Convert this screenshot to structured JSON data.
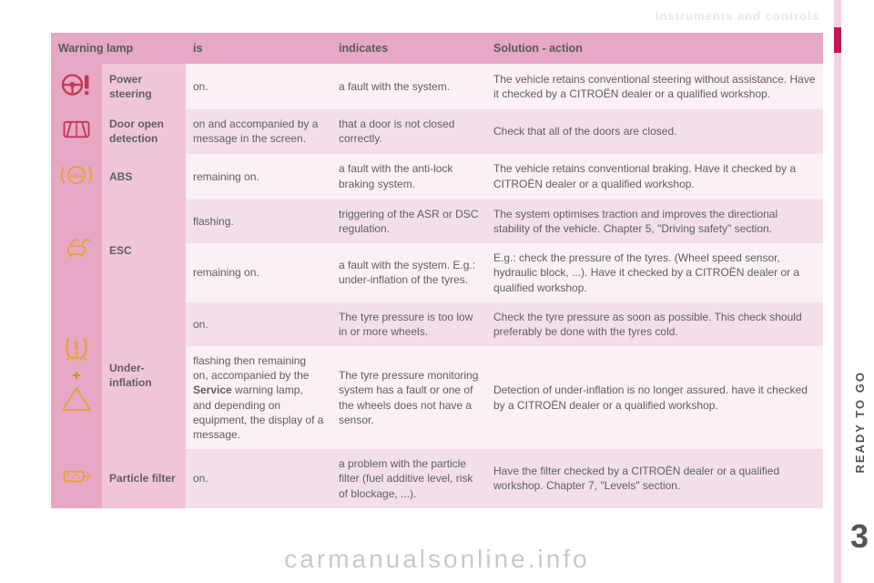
{
  "header_faint": "Instruments and controls",
  "side_label": "READY TO GO",
  "page_number": "3",
  "watermark": "carmanualsonline.info",
  "colors": {
    "header_bg": "#e6a8c4",
    "row_light": "#faf0f5",
    "row_dark": "#f3dfe9",
    "name_cell": "#f0c5da",
    "icon_red": "#c13a53",
    "icon_orange": "#e8a13a",
    "right_bar": "#f4d3e1",
    "accent": "#c2185b"
  },
  "table": {
    "headers": [
      "Warning lamp",
      "is",
      "indicates",
      "Solution - action"
    ],
    "rows": [
      {
        "icon": "steering",
        "name": "Power steering",
        "is": "on.",
        "indicates": "a fault with the system.",
        "solution": "The vehicle retains conventional steering without assistance. Have it checked by a CITROËN dealer or a qualified workshop.",
        "shade": "light"
      },
      {
        "icon": "door",
        "name": "Door open detection",
        "is": "on and accompanied by a message in the screen.",
        "indicates": "that a door is not closed correctly.",
        "solution": "Check that all of the doors are closed.",
        "shade": "dark"
      },
      {
        "icon": "abs",
        "name": "ABS",
        "is": "remaining on.",
        "indicates": "a fault with the anti-lock braking system.",
        "solution": "The vehicle retains conventional braking.\nHave it checked by a CITROËN dealer or a qualified workshop.",
        "shade": "light"
      },
      {
        "icon": "esc",
        "name": "ESC",
        "rowspan": 2,
        "sub": [
          {
            "is": "flashing.",
            "indicates": "triggering of the ASR or DSC regulation.",
            "solution": "The system optimises traction and improves the directional stability of the vehicle.\nChapter 5, \"Driving safety\" section.",
            "shade": "dark"
          },
          {
            "is": "remaining on.",
            "indicates": "a fault with the system. E.g.: under-inflation of the tyres.",
            "solution": "E.g.: check the pressure of the tyres. (Wheel speed sensor, hydraulic block, ...). Have it checked by a CITROËN dealer or a qualified workshop.",
            "shade": "light"
          }
        ]
      },
      {
        "icon": "tyre",
        "name": "Under-inflation",
        "rowspan": 2,
        "sub": [
          {
            "is": "on.",
            "indicates": "The tyre pressure is too low in or more wheels.",
            "solution": "Check the tyre pressure as soon as possible. This check should preferably be done with the tyres cold.",
            "shade": "dark"
          },
          {
            "is_html": "flashing then remaining on, accompanied by the <b>Service</b> warning lamp, and depending on equipment, the display of a message.",
            "indicates": "The tyre pressure monitoring system has a fault or one of the wheels does not have a sensor.",
            "solution": "Detection of under-inflation is no longer assured. have it checked by a CITROËN dealer or a qualified workshop.",
            "shade": "light"
          }
        ]
      },
      {
        "icon": "particle",
        "name": "Particle filter",
        "is": "on.",
        "indicates": "a problem with the particle filter (fuel additive level, risk of blockage, ...).",
        "solution": "Have the filter checked by a CITROËN dealer or a qualified workshop.\nChapter 7, \"Levels\" section.",
        "shade": "dark"
      }
    ]
  },
  "icons": {
    "steering": {
      "color": "#c13a53",
      "type": "steering"
    },
    "door": {
      "color": "#c13a53",
      "type": "door"
    },
    "abs": {
      "color": "#e8a13a",
      "type": "abs"
    },
    "esc": {
      "color": "#e8a13a",
      "type": "esc"
    },
    "tyre": {
      "color": "#e8a13a",
      "type": "tyre"
    },
    "particle": {
      "color": "#e8a13a",
      "type": "particle"
    }
  }
}
